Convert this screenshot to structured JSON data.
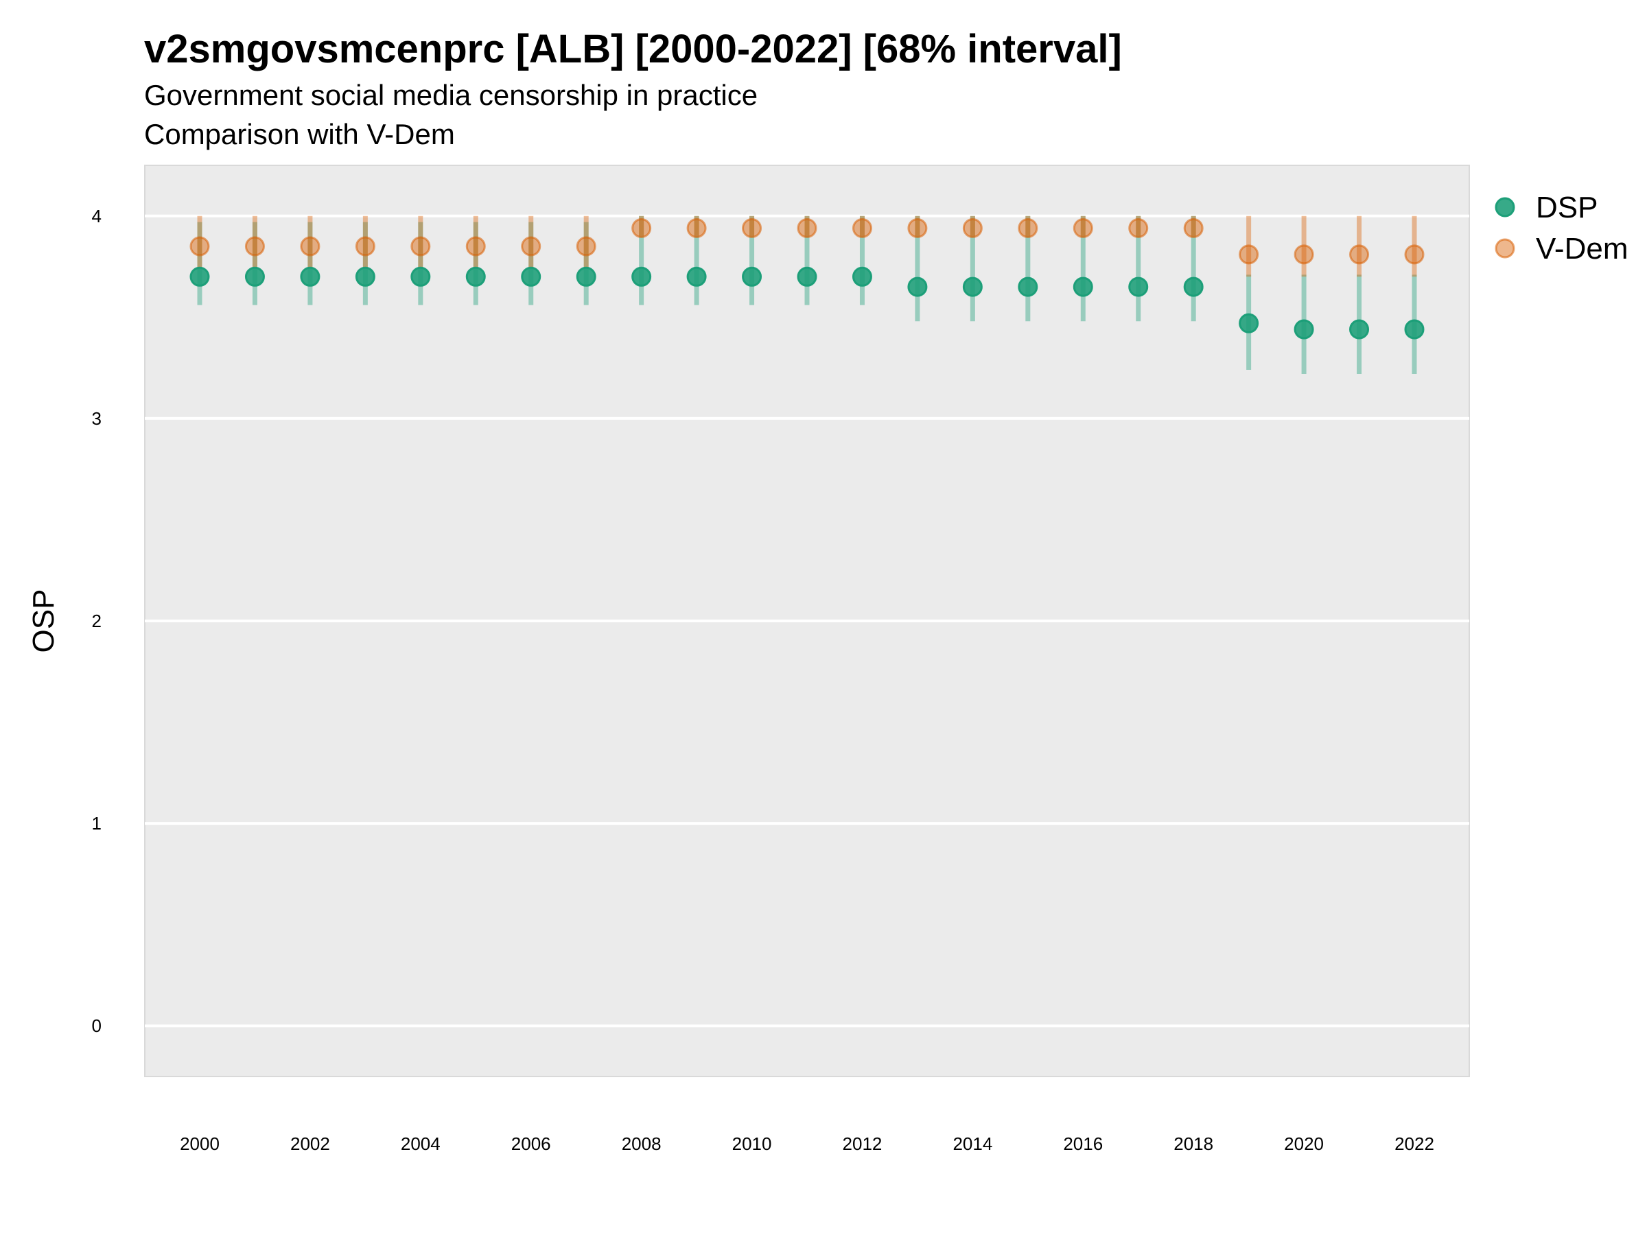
{
  "chart_data": {
    "type": "scatter",
    "title": "v2smgovsmcenprc [ALB] [2000-2022] [68% interval]",
    "subtitle": "Government social media censorship in practice",
    "subtitle2": "Comparison with V-Dem",
    "ylabel": "OSP",
    "xlabel": "",
    "ylim": [
      -0.25,
      4.25
    ],
    "yticks": [
      "0",
      "1",
      "2",
      "3",
      "4"
    ],
    "xticks": [
      "2000",
      "2002",
      "2004",
      "2006",
      "2008",
      "2010",
      "2012",
      "2014",
      "2016",
      "2018",
      "2020",
      "2022"
    ],
    "grid": true,
    "legend_position": "right",
    "x": [
      2000,
      2001,
      2002,
      2003,
      2004,
      2005,
      2006,
      2007,
      2008,
      2009,
      2010,
      2011,
      2012,
      2013,
      2014,
      2015,
      2016,
      2017,
      2018,
      2019,
      2020,
      2021,
      2022
    ],
    "series": [
      {
        "name": "DSP",
        "color": "#1b9e77",
        "values": [
          3.7,
          3.7,
          3.7,
          3.7,
          3.7,
          3.7,
          3.7,
          3.7,
          3.7,
          3.7,
          3.7,
          3.7,
          3.7,
          3.65,
          3.65,
          3.65,
          3.65,
          3.65,
          3.65,
          3.47,
          3.44,
          3.44,
          3.44
        ],
        "lower": [
          3.56,
          3.56,
          3.56,
          3.56,
          3.56,
          3.56,
          3.56,
          3.56,
          3.56,
          3.56,
          3.56,
          3.56,
          3.56,
          3.48,
          3.48,
          3.48,
          3.48,
          3.48,
          3.48,
          3.24,
          3.22,
          3.22,
          3.22
        ],
        "upper": [
          3.97,
          3.97,
          3.97,
          3.97,
          3.97,
          3.97,
          3.97,
          3.97,
          4.0,
          4.0,
          4.0,
          4.0,
          4.0,
          4.0,
          4.0,
          4.0,
          4.0,
          4.0,
          4.0,
          3.71,
          3.71,
          3.71,
          3.71
        ]
      },
      {
        "name": "V-Dem",
        "color": "#d95f02",
        "values": [
          3.85,
          3.85,
          3.85,
          3.85,
          3.85,
          3.85,
          3.85,
          3.85,
          3.94,
          3.94,
          3.94,
          3.94,
          3.94,
          3.94,
          3.94,
          3.94,
          3.94,
          3.94,
          3.94,
          3.81,
          3.81,
          3.81,
          3.81
        ],
        "lower": [
          3.74,
          3.74,
          3.74,
          3.74,
          3.74,
          3.74,
          3.74,
          3.74,
          3.9,
          3.9,
          3.9,
          3.9,
          3.9,
          3.9,
          3.9,
          3.9,
          3.9,
          3.9,
          3.9,
          3.7,
          3.7,
          3.7,
          3.7
        ],
        "upper": [
          4.0,
          4.0,
          4.0,
          4.0,
          4.0,
          4.0,
          4.0,
          4.0,
          4.0,
          4.0,
          4.0,
          4.0,
          4.0,
          4.0,
          4.0,
          4.0,
          4.0,
          4.0,
          4.0,
          4.0,
          4.0,
          4.0,
          4.0
        ]
      }
    ]
  }
}
